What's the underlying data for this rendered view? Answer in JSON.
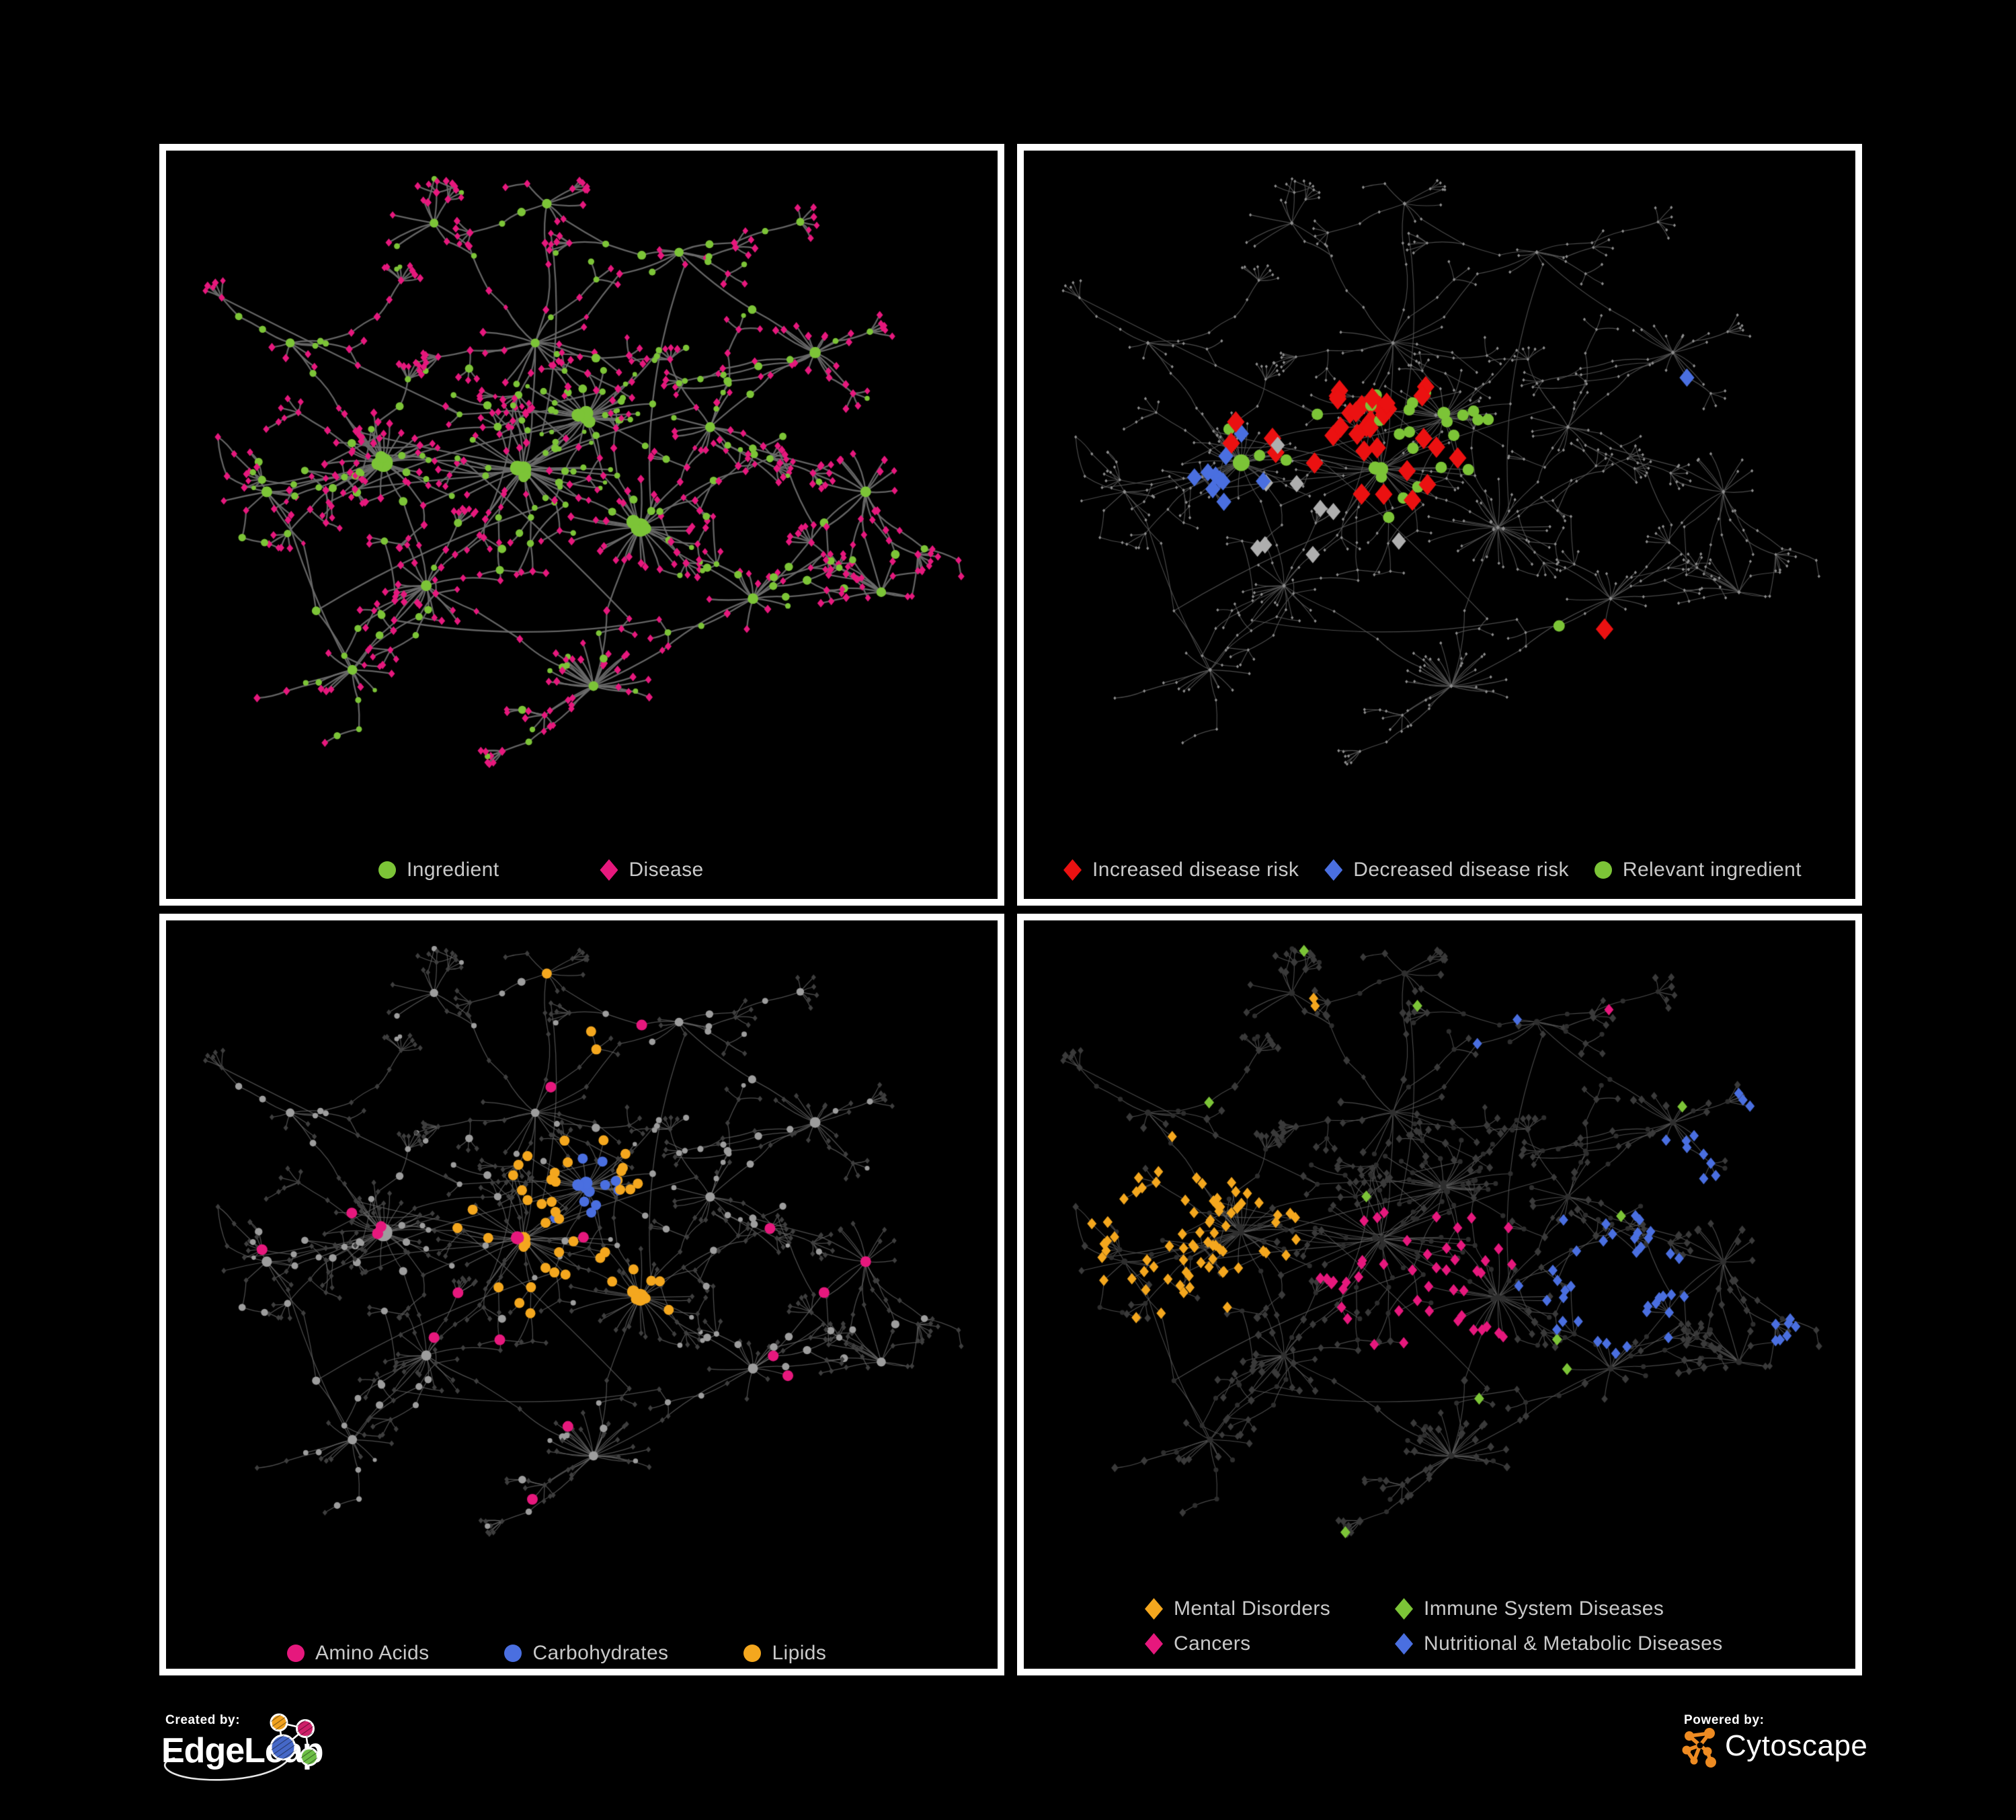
{
  "figure": {
    "background": "#000000",
    "panel_border_color": "#FFFFFF",
    "legend_text_color": "#C9C9C9"
  },
  "panels": [
    {
      "name": "ingredient-disease-network",
      "legend": [
        {
          "label": "Ingredient",
          "shape": "circle",
          "color": "#7CC437"
        },
        {
          "label": "Disease",
          "shape": "diamond",
          "color": "#E6187D"
        }
      ],
      "style": {
        "edge": {
          "color": "#6C6C6C",
          "width": 2.3,
          "alpha": 0.92
        },
        "base": {
          "I": {
            "shape": "circle",
            "color": "#7CC437",
            "sizeMode": "var"
          },
          "D": {
            "shape": "diamond",
            "color": "#E6187D",
            "sizeMode": "var"
          }
        },
        "hl_seed": 0,
        "specs": [],
        "highlights": []
      }
    },
    {
      "name": "disease-risk-network",
      "legend": [
        {
          "label": "Increased disease risk",
          "shape": "diamond",
          "color": "#EB1111"
        },
        {
          "label": "Decreased disease risk",
          "shape": "diamond",
          "color": "#4A6FE0"
        },
        {
          "label": "Relevant ingredient",
          "shape": "circle",
          "color": "#7CC437"
        }
      ],
      "style": {
        "edge": {
          "color": "#585858",
          "width": 1.15,
          "alpha": 0.85
        },
        "base": {
          "I": {
            "shape": "diamond",
            "color": "#8E8E8E",
            "size": 2.6
          },
          "D": {
            "shape": "diamond",
            "color": "#8E8E8E",
            "size": 2.6
          }
        },
        "hl_seed": 101,
        "specs": [
          {
            "target": "D",
            "count": 36,
            "scatter": 0.05,
            "centers": [
              [
                0.43,
                0.43,
                0.1,
                1
              ],
              [
                0.26,
                0.42,
                0.07,
                0.65
              ],
              [
                0.6,
                0.5,
                0.13,
                0.55
              ],
              [
                0.7,
                0.72,
                0.05,
                0.9
              ],
              [
                0.62,
                0.35,
                0.06,
                0.5
              ]
            ]
          },
          {
            "target": "D",
            "count": 11,
            "scatter": 0,
            "centers": [
              [
                0.235,
                0.46,
                0.055,
                1
              ],
              [
                0.805,
                0.345,
                0.025,
                1.4
              ]
            ]
          },
          {
            "target": "D",
            "count": 9,
            "scatter": 0.02,
            "centers": [
              [
                0.33,
                0.5,
                0.2,
                0.5
              ],
              [
                0.52,
                0.55,
                0.12,
                0.5
              ]
            ]
          },
          {
            "target": "I",
            "count": 30,
            "scatter": 0.06,
            "centers": [
              [
                0.44,
                0.44,
                0.13,
                1
              ],
              [
                0.26,
                0.4,
                0.09,
                0.8
              ],
              [
                0.655,
                0.7,
                0.06,
                0.8
              ],
              [
                0.5,
                0.78,
                0.05,
                0.7
              ],
              [
                0.13,
                0.49,
                0.03,
                0.8
              ]
            ]
          }
        ],
        "highlights": [
          {
            "shape": "diamond",
            "color": "#EB1111",
            "size": 13.5
          },
          {
            "shape": "diamond",
            "color": "#4A6FE0",
            "size": 11.5
          },
          {
            "shape": "diamond",
            "color": "#AEAEAE",
            "size": 11
          },
          {
            "shape": "circle",
            "color": "#7CC437",
            "size": 8.5
          }
        ]
      }
    },
    {
      "name": "compound-class-network",
      "legend": [
        {
          "label": "Amino Acids",
          "shape": "circle",
          "color": "#E6187D"
        },
        {
          "label": "Carbohydrates",
          "shape": "circle",
          "color": "#4A6FE0"
        },
        {
          "label": "Lipids",
          "shape": "circle",
          "color": "#F4A71E"
        }
      ],
      "style": {
        "edge": {
          "color": "#6E6E6E",
          "width": 1.25,
          "alpha": 0.7
        },
        "base": {
          "I": {
            "shape": "circle",
            "color": "#9D9D9D",
            "sizeMode": "var",
            "mul": 0.95
          },
          "D": {
            "shape": "diamond",
            "color": "#3E3E3E",
            "size": 4.4
          }
        },
        "hl_seed": 102,
        "specs": [
          {
            "target": "I",
            "count": 13,
            "scatter": 0.04,
            "centers": [
              [
                0.5,
                0.385,
                0.05,
                1
              ],
              [
                0.29,
                0.06,
                0.02,
                1
              ],
              [
                0.065,
                0.25,
                0.02,
                1
              ],
              [
                0.68,
                0.56,
                0.03,
                0.9
              ]
            ]
          },
          {
            "target": "I",
            "count": 52,
            "scatter": 0.12,
            "centers": [
              [
                0.505,
                0.385,
                0.055,
                1.3
              ],
              [
                0.44,
                0.45,
                0.12,
                0.55
              ],
              [
                0.565,
                0.56,
                0.045,
                1.0
              ],
              [
                0.44,
                0.1,
                0.1,
                0.55
              ],
              [
                0.65,
                0.32,
                0.2,
                0.3
              ]
            ]
          },
          {
            "target": "I",
            "count": 18,
            "scatter": 0.45,
            "centers": []
          }
        ],
        "highlights": [
          {
            "shape": "circle",
            "color": "#4A6FE0",
            "size": 7.5
          },
          {
            "shape": "circle",
            "color": "#F4A71E",
            "size": 7.5
          },
          {
            "shape": "circle",
            "color": "#E6187D",
            "size": 8
          }
        ]
      }
    },
    {
      "name": "disease-class-network",
      "legend": [
        {
          "label": "Mental Disorders",
          "shape": "diamond",
          "color": "#F4A71E"
        },
        {
          "label": "Immune System Diseases",
          "shape": "diamond",
          "color": "#7CC437"
        },
        {
          "label": "Cancers",
          "shape": "diamond",
          "color": "#E6187D"
        },
        {
          "label": "Nutritional & Metabolic Diseases",
          "shape": "diamond",
          "color": "#4A6FE0"
        }
      ],
      "style": {
        "edge": {
          "color": "#5C5C5C",
          "width": 1.1,
          "alpha": 0.8
        },
        "base": {
          "I": {
            "shape": "circle",
            "color": "#2E2E2E",
            "size": 3.6
          },
          "D": {
            "shape": "diamond",
            "color": "#3A3A3A",
            "sizeMode": "var"
          }
        },
        "hl_seed": 103,
        "specs": [
          {
            "target": "D",
            "count": 78,
            "scatter": 0.05,
            "centers": [
              [
                0.165,
                0.45,
                0.105,
                1
              ],
              [
                0.3,
                0.12,
                0.14,
                0.35
              ],
              [
                0.42,
                0.62,
                0.3,
                0.12
              ]
            ]
          },
          {
            "target": "D",
            "count": 48,
            "scatter": 0.06,
            "centers": [
              [
                0.47,
                0.52,
                0.1,
                1
              ],
              [
                0.53,
                0.63,
                0.06,
                0.9
              ],
              [
                0.95,
                0.27,
                0.04,
                0.8
              ],
              [
                0.68,
                0.12,
                0.05,
                0.5
              ]
            ]
          },
          {
            "target": "D",
            "count": 58,
            "scatter": 0.1,
            "centers": [
              [
                0.72,
                0.53,
                0.09,
                1
              ],
              [
                0.86,
                0.32,
                0.09,
                0.8
              ],
              [
                0.6,
                0.1,
                0.15,
                0.5
              ],
              [
                0.3,
                0.78,
                0.2,
                0.25
              ],
              [
                0.93,
                0.6,
                0.06,
                0.6
              ]
            ]
          },
          {
            "target": "D",
            "count": 10,
            "scatter": 0.3,
            "centers": []
          }
        ],
        "highlights": [
          {
            "shape": "diamond",
            "color": "#F4A71E",
            "size": 7.2
          },
          {
            "shape": "diamond",
            "color": "#E6187D",
            "size": 7.2
          },
          {
            "shape": "diamond",
            "color": "#4A6FE0",
            "size": 7.2
          },
          {
            "shape": "diamond",
            "color": "#7CC437",
            "size": 7.6
          }
        ]
      }
    }
  ],
  "network": {
    "seed": 7,
    "extraEdges": 46,
    "hubs": [
      {
        "u": 0.31,
        "v": 0.085,
        "leaves": 4,
        "branches": 4,
        "big": 0,
        "leafType": "D",
        "r": 0.05
      },
      {
        "u": 0.44,
        "v": 0.27,
        "leaves": 6,
        "branches": 6,
        "big": 0,
        "leafType": "M",
        "r": 0.05
      },
      {
        "u": 0.245,
        "v": 0.455,
        "leaves": 28,
        "branches": 7,
        "big": 1,
        "leafType": "D",
        "r": 0.075
      },
      {
        "u": 0.095,
        "v": 0.5,
        "leaves": 5,
        "branches": 3,
        "big": 0,
        "leafType": "D",
        "r": 0.05
      },
      {
        "u": 0.425,
        "v": 0.465,
        "leaves": 22,
        "branches": 8,
        "big": 1,
        "leafType": "M",
        "r": 0.07
      },
      {
        "u": 0.505,
        "v": 0.385,
        "leaves": 24,
        "branches": 4,
        "big": 1,
        "leafType": "I",
        "r": 0.055
      },
      {
        "u": 0.575,
        "v": 0.555,
        "leaves": 22,
        "branches": 5,
        "big": 1,
        "leafType": "D",
        "r": 0.06
      },
      {
        "u": 0.3,
        "v": 0.645,
        "leaves": 14,
        "branches": 5,
        "big": 0,
        "leafType": "D",
        "r": 0.06
      },
      {
        "u": 0.515,
        "v": 0.8,
        "leaves": 26,
        "branches": 3,
        "big": 0,
        "leafType": "D",
        "r": 0.065
      },
      {
        "u": 0.205,
        "v": 0.775,
        "leaves": 8,
        "branches": 3,
        "big": 0,
        "leafType": "D",
        "r": 0.05
      },
      {
        "u": 0.665,
        "v": 0.4,
        "leaves": 7,
        "branches": 5,
        "big": 0,
        "leafType": "D",
        "r": 0.05
      },
      {
        "u": 0.8,
        "v": 0.285,
        "leaves": 12,
        "branches": 5,
        "big": 0,
        "leafType": "D",
        "r": 0.06
      },
      {
        "u": 0.865,
        "v": 0.5,
        "leaves": 9,
        "branches": 4,
        "big": 0,
        "leafType": "D",
        "r": 0.05
      },
      {
        "u": 0.72,
        "v": 0.665,
        "leaves": 10,
        "branches": 4,
        "big": 0,
        "leafType": "D",
        "r": 0.055
      },
      {
        "u": 0.455,
        "v": 0.055,
        "leaves": 4,
        "branches": 3,
        "big": 0,
        "leafType": "D",
        "r": 0.04
      },
      {
        "u": 0.885,
        "v": 0.655,
        "leaves": 8,
        "branches": 3,
        "big": 0,
        "leafType": "D",
        "r": 0.05
      },
      {
        "u": 0.625,
        "v": 0.13,
        "leaves": 5,
        "branches": 4,
        "big": 0,
        "leafType": "D",
        "r": 0.045
      },
      {
        "u": 0.125,
        "v": 0.27,
        "leaves": 5,
        "branches": 3,
        "big": 0,
        "leafType": "D",
        "r": 0.045
      }
    ],
    "links": [
      [
        1,
        0
      ],
      [
        1,
        14
      ],
      [
        1,
        16
      ],
      [
        1,
        4
      ],
      [
        2,
        3
      ],
      [
        2,
        17
      ],
      [
        2,
        4
      ],
      [
        2,
        7
      ],
      [
        4,
        5
      ],
      [
        4,
        6
      ],
      [
        4,
        7
      ],
      [
        5,
        6
      ],
      [
        6,
        8
      ],
      [
        6,
        10
      ],
      [
        6,
        13
      ],
      [
        7,
        8
      ],
      [
        7,
        9
      ],
      [
        10,
        11
      ],
      [
        10,
        12
      ],
      [
        11,
        16
      ],
      [
        12,
        15
      ],
      [
        13,
        15
      ],
      [
        13,
        8
      ],
      [
        9,
        3
      ],
      [
        5,
        1
      ],
      [
        12,
        13
      ]
    ]
  },
  "footer": {
    "created_by": "Created by:",
    "creator_brand": "EdgeLeap",
    "powered_by": "Powered by:",
    "powered_brand": "Cytoscape",
    "edgeleap_logo_colors": {
      "orange": "#F0A11E",
      "pink": "#CE2069",
      "blue": "#4568C8",
      "green": "#6CBE45",
      "line": "#FFFFFF"
    },
    "cytoscape_logo_color": "#EE8B22"
  }
}
